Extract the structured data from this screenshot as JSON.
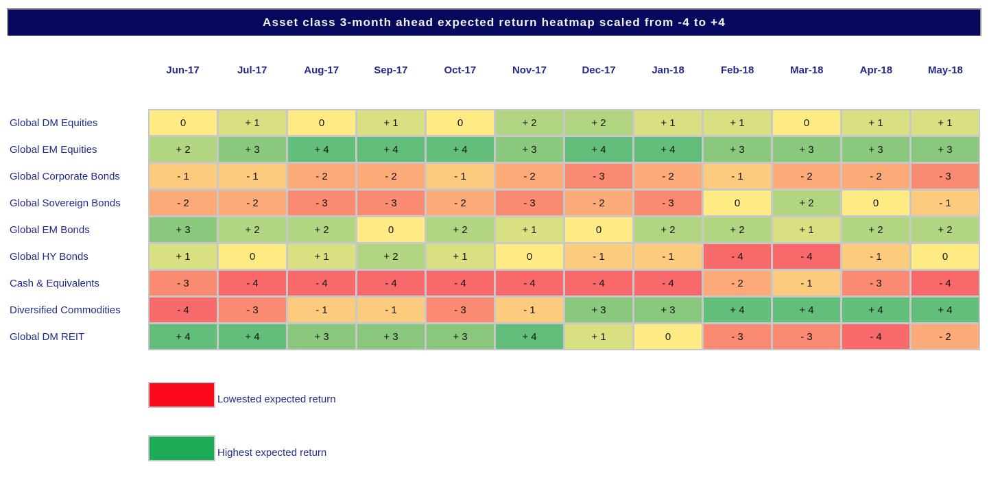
{
  "title": "Asset class 3-month ahead expected return heatmap scaled from -4 to +4",
  "colors": {
    "title_bg": "#07095E",
    "title_text": "#F2F2F2",
    "header_text": "#23298C",
    "row_label_text": "#23298C",
    "cell_text": "#141414",
    "grid_line": "#C8C8C8",
    "scale": {
      "-4": "#F8696B",
      "-3": "#FA8A71",
      "-2": "#FCAA78",
      "-1": "#FDCB7E",
      "0": "#FFEB84",
      "1": "#D8E082",
      "2": "#B1D580",
      "3": "#8AC97D",
      "4": "#63BE7B"
    }
  },
  "chart_data": {
    "type": "heatmap",
    "title": "Asset class 3-month ahead expected return heatmap scaled from -4 to +4",
    "scale_min": -4,
    "scale_max": 4,
    "columns": [
      "Jun-17",
      "Jul-17",
      "Aug-17",
      "Sep-17",
      "Oct-17",
      "Nov-17",
      "Dec-17",
      "Jan-18",
      "Feb-18",
      "Mar-18",
      "Apr-18",
      "May-18"
    ],
    "rows": [
      "Global DM Equities",
      "Global EM Equities",
      "Global Corporate Bonds",
      "Global Sovereign Bonds",
      "Global EM Bonds",
      "Global HY Bonds",
      "Cash & Equivalents",
      "Diversified Commodities",
      "Global DM REIT"
    ],
    "values": [
      [
        0,
        1,
        0,
        1,
        0,
        2,
        2,
        1,
        1,
        0,
        1,
        1
      ],
      [
        2,
        3,
        4,
        4,
        4,
        3,
        4,
        4,
        3,
        3,
        3,
        3
      ],
      [
        -1,
        -1,
        -2,
        -2,
        -1,
        -2,
        -3,
        -2,
        -1,
        -2,
        -2,
        -3
      ],
      [
        -2,
        -2,
        -3,
        -3,
        -2,
        -3,
        -2,
        -3,
        0,
        2,
        0,
        -1
      ],
      [
        3,
        2,
        2,
        0,
        2,
        1,
        0,
        2,
        2,
        1,
        2,
        2
      ],
      [
        1,
        0,
        1,
        2,
        1,
        0,
        -1,
        -1,
        -4,
        -4,
        -1,
        0
      ],
      [
        -3,
        -4,
        -4,
        -4,
        -4,
        -4,
        -4,
        -4,
        -2,
        -1,
        -3,
        -4
      ],
      [
        -4,
        -3,
        -1,
        -1,
        -3,
        -1,
        3,
        3,
        4,
        4,
        4,
        4
      ],
      [
        4,
        4,
        3,
        3,
        3,
        4,
        1,
        0,
        -3,
        -3,
        -4,
        -2
      ]
    ],
    "legend": [
      {
        "label": "Lowested expected return",
        "color": "#FA0A1B"
      },
      {
        "label": "Highest expected return",
        "color": "#1CAB57"
      }
    ]
  }
}
